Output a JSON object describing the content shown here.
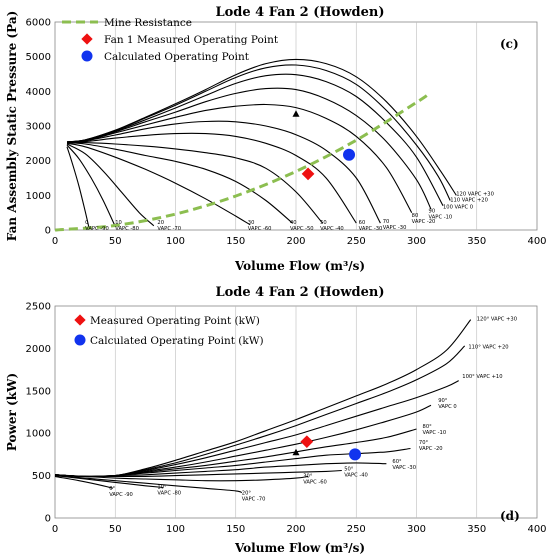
{
  "chart_data": [
    {
      "type": "line",
      "title": "Lode 4 Fan 2 (Howden)",
      "xlabel": "Volume Flow (m³/s)",
      "ylabel": "Fan Assembly Static Pressure (Pa)",
      "panel_label": "(c)",
      "xlim": [
        0,
        400
      ],
      "ylim": [
        0,
        6000
      ],
      "xticks": [
        0,
        50,
        100,
        150,
        200,
        250,
        300,
        350,
        400
      ],
      "yticks": [
        0,
        1000,
        2000,
        3000,
        4000,
        5000,
        6000
      ],
      "grid": "vertical",
      "legend_placement": "top-left",
      "legend": {
        "mine_resistance": "Mine Resistance",
        "measured": "Fan 1 Measured Operating Point",
        "calculated": "Calculated Operating Point"
      },
      "mine_resistance": {
        "x": [
          0,
          50,
          100,
          150,
          200,
          250,
          300,
          310
        ],
        "y": [
          0,
          130,
          460,
          980,
          1690,
          2590,
          3680,
          3920
        ],
        "color": "#8cbe50"
      },
      "measured_point": {
        "x": 210,
        "y": 1620,
        "color": "#ee1111"
      },
      "calculated_point": {
        "x": 244,
        "y": 2170,
        "color": "#1133ee"
      },
      "triangle_marker": {
        "x": 200,
        "y": 3340
      },
      "series": [
        {
          "label": [
            "120 VAPC +30"
          ],
          "label_pos": [
            333,
            1000
          ],
          "x": [
            10,
            25,
            50,
            75,
            100,
            125,
            150,
            175,
            200,
            225,
            250,
            275,
            300,
            320,
            333
          ],
          "y": [
            2540,
            2600,
            2880,
            3250,
            3640,
            4050,
            4480,
            4800,
            4920,
            4800,
            4420,
            3700,
            2700,
            1700,
            1000
          ]
        },
        {
          "label": [
            "110 VAPC +20"
          ],
          "label_pos": [
            328,
            820
          ],
          "x": [
            10,
            25,
            50,
            75,
            100,
            125,
            150,
            175,
            200,
            225,
            250,
            275,
            300,
            318,
            328
          ],
          "y": [
            2540,
            2600,
            2870,
            3230,
            3600,
            4000,
            4400,
            4680,
            4760,
            4600,
            4200,
            3450,
            2450,
            1550,
            850
          ]
        },
        {
          "label": [
            "100 VAPC 0"
          ],
          "label_pos": [
            322,
            620
          ],
          "x": [
            10,
            25,
            50,
            75,
            100,
            125,
            150,
            175,
            200,
            225,
            250,
            275,
            300,
            322
          ],
          "y": [
            2540,
            2590,
            2850,
            3180,
            3520,
            3880,
            4230,
            4450,
            4480,
            4280,
            3850,
            3100,
            2100,
            700
          ]
        },
        {
          "label": [
            "90",
            "VAPC -10"
          ],
          "label_pos": [
            310,
            500
          ],
          "x": [
            10,
            25,
            50,
            75,
            100,
            125,
            150,
            175,
            200,
            225,
            250,
            275,
            300,
            312
          ],
          "y": [
            2540,
            2590,
            2830,
            3120,
            3400,
            3700,
            3940,
            4080,
            4050,
            3780,
            3300,
            2550,
            1450,
            600
          ]
        },
        {
          "label": [
            "80",
            "VAPC -20"
          ],
          "label_pos": [
            296,
            380
          ],
          "x": [
            10,
            25,
            50,
            75,
            100,
            125,
            150,
            175,
            200,
            225,
            250,
            275,
            296
          ],
          "y": [
            2540,
            2580,
            2800,
            3030,
            3250,
            3450,
            3570,
            3620,
            3530,
            3220,
            2700,
            1800,
            500
          ]
        },
        {
          "label": [
            "70",
            "VAPC -30"
          ],
          "label_pos": [
            272,
            200
          ],
          "x": [
            10,
            25,
            50,
            75,
            100,
            125,
            150,
            175,
            200,
            225,
            250,
            270
          ],
          "y": [
            2530,
            2570,
            2740,
            2920,
            3060,
            3130,
            3120,
            3000,
            2750,
            2300,
            1500,
            200
          ]
        },
        {
          "label": [
            "60",
            "VAPC -30"
          ],
          "label_pos": [
            252,
            180
          ],
          "x": [
            10,
            25,
            50,
            75,
            100,
            125,
            150,
            175,
            200,
            225,
            250
          ],
          "y": [
            2530,
            2550,
            2650,
            2730,
            2780,
            2780,
            2700,
            2500,
            2150,
            1500,
            200
          ]
        },
        {
          "label": [
            "50",
            "VAPC -40"
          ],
          "label_pos": [
            220,
            180
          ],
          "x": [
            10,
            25,
            50,
            75,
            100,
            125,
            150,
            175,
            200,
            222
          ],
          "y": [
            2520,
            2520,
            2480,
            2420,
            2340,
            2230,
            2080,
            1780,
            1100,
            200
          ]
        },
        {
          "label": [
            "40",
            "VAPC -50"
          ],
          "label_pos": [
            195,
            180
          ],
          "x": [
            10,
            25,
            50,
            75,
            100,
            125,
            150,
            175,
            197
          ],
          "y": [
            2520,
            2480,
            2330,
            2150,
            1980,
            1750,
            1400,
            850,
            200
          ]
        },
        {
          "label": [
            "30",
            "VAPC -60"
          ],
          "label_pos": [
            160,
            180
          ],
          "x": [
            10,
            25,
            50,
            75,
            100,
            125,
            150,
            162
          ],
          "y": [
            2500,
            2400,
            2100,
            1750,
            1350,
            900,
            400,
            150
          ]
        },
        {
          "label": [
            "20",
            "VAPC -70"
          ],
          "label_pos": [
            85,
            180
          ],
          "x": [
            10,
            25,
            40,
            55,
            70,
            82
          ],
          "y": [
            2480,
            2200,
            1700,
            1100,
            500,
            120
          ]
        },
        {
          "label": [
            "10",
            "VAPC -80"
          ],
          "label_pos": [
            50,
            180
          ],
          "x": [
            10,
            20,
            30,
            40,
            50
          ],
          "y": [
            2450,
            2050,
            1500,
            850,
            100
          ]
        },
        {
          "label": [
            "0",
            "VAPC -90"
          ],
          "label_pos": [
            25,
            180
          ],
          "x": [
            10,
            15,
            20,
            25,
            28
          ],
          "y": [
            2400,
            1850,
            1250,
            550,
            100
          ]
        }
      ]
    },
    {
      "type": "line",
      "title": "Lode 4 Fan 2 (Howden)",
      "xlabel": "Volume Flow (m³/s)",
      "ylabel": "Power (kW)",
      "panel_label": "(d)",
      "xlim": [
        0,
        400
      ],
      "ylim": [
        0,
        2500
      ],
      "xticks": [
        0,
        50,
        100,
        150,
        200,
        250,
        300,
        350,
        400
      ],
      "yticks": [
        0,
        500,
        1000,
        1500,
        2000,
        2500
      ],
      "grid": "vertical",
      "legend_placement": "top-left",
      "legend": {
        "measured": "Measured Operating Point (kW)",
        "calculated": "Calculated Operating Point (kW)"
      },
      "measured_point": {
        "x": 209,
        "y": 900,
        "color": "#ee1111"
      },
      "calculated_point": {
        "x": 249,
        "y": 750,
        "color": "#1133ee"
      },
      "triangle_marker": {
        "x": 200,
        "y": 770
      },
      "series": [
        {
          "label": [
            "120° VAPC +30"
          ],
          "label_pos": [
            350,
            2330
          ],
          "x": [
            0,
            25,
            50,
            75,
            100,
            125,
            150,
            175,
            200,
            225,
            250,
            275,
            300,
            325,
            345
          ],
          "y": [
            510,
            490,
            500,
            580,
            680,
            790,
            900,
            1030,
            1160,
            1300,
            1440,
            1580,
            1750,
            1980,
            2340
          ]
        },
        {
          "label": [
            "110° VAPC +20"
          ],
          "label_pos": [
            343,
            2000
          ],
          "x": [
            0,
            25,
            50,
            75,
            100,
            125,
            150,
            175,
            200,
            225,
            250,
            275,
            300,
            325,
            340
          ],
          "y": [
            510,
            490,
            500,
            570,
            650,
            750,
            860,
            970,
            1090,
            1220,
            1350,
            1480,
            1630,
            1820,
            2030
          ]
        },
        {
          "label": [
            "100° VAPC +10"
          ],
          "label_pos": [
            338,
            1650
          ],
          "x": [
            0,
            25,
            50,
            75,
            100,
            125,
            150,
            175,
            200,
            225,
            250,
            275,
            300,
            325,
            335
          ],
          "y": [
            510,
            490,
            500,
            560,
            630,
            710,
            800,
            890,
            980,
            1090,
            1200,
            1310,
            1420,
            1550,
            1620
          ]
        },
        {
          "label": [
            "90°",
            "VAPC 0"
          ],
          "label_pos": [
            318,
            1370
          ],
          "x": [
            0,
            25,
            50,
            75,
            100,
            125,
            150,
            175,
            200,
            225,
            250,
            275,
            300,
            312
          ],
          "y": [
            510,
            490,
            500,
            550,
            600,
            660,
            730,
            800,
            870,
            950,
            1040,
            1140,
            1250,
            1330
          ]
        },
        {
          "label": [
            "80°",
            "VAPC -10"
          ],
          "label_pos": [
            305,
            1060
          ],
          "x": [
            0,
            25,
            50,
            75,
            100,
            125,
            150,
            175,
            200,
            225,
            250,
            275,
            300
          ],
          "y": [
            510,
            490,
            500,
            540,
            580,
            620,
            670,
            720,
            780,
            840,
            890,
            950,
            1050
          ]
        },
        {
          "label": [
            "70°",
            "VAPC -20"
          ],
          "label_pos": [
            302,
            870
          ],
          "x": [
            0,
            25,
            50,
            75,
            100,
            125,
            150,
            175,
            200,
            225,
            250,
            275,
            295
          ],
          "y": [
            510,
            490,
            500,
            530,
            560,
            590,
            620,
            660,
            700,
            740,
            760,
            780,
            820
          ]
        },
        {
          "label": [
            "60°",
            "VAPC -30"
          ],
          "label_pos": [
            280,
            650
          ],
          "x": [
            0,
            25,
            50,
            75,
            100,
            125,
            150,
            175,
            200,
            225,
            250,
            275
          ],
          "y": [
            510,
            490,
            500,
            510,
            530,
            550,
            570,
            600,
            620,
            640,
            650,
            640
          ]
        },
        {
          "label": [
            "50°",
            "VAPC -40"
          ],
          "label_pos": [
            240,
            560
          ],
          "x": [
            0,
            25,
            50,
            75,
            100,
            125,
            150,
            175,
            200,
            225,
            238
          ],
          "y": [
            510,
            490,
            490,
            490,
            500,
            510,
            520,
            530,
            540,
            550,
            560
          ]
        },
        {
          "label": [
            "30°",
            "VAPC -60"
          ],
          "label_pos": [
            206,
            480
          ],
          "x": [
            0,
            25,
            50,
            75,
            100,
            125,
            150,
            175,
            200,
            210
          ],
          "y": [
            510,
            490,
            470,
            460,
            450,
            440,
            440,
            450,
            470,
            490
          ]
        },
        {
          "label": [
            "20°",
            "VAPC -70"
          ],
          "label_pos": [
            155,
            280
          ],
          "x": [
            0,
            25,
            50,
            75,
            100,
            125,
            150,
            155
          ],
          "y": [
            500,
            470,
            440,
            410,
            380,
            350,
            320,
            300
          ]
        },
        {
          "label": [
            "10°",
            "VAPC -80"
          ],
          "label_pos": [
            85,
            350
          ],
          "x": [
            0,
            25,
            50,
            75,
            90
          ],
          "y": [
            500,
            460,
            420,
            380,
            360
          ]
        },
        {
          "label": [
            "0°",
            "VAPC -90"
          ],
          "label_pos": [
            45,
            330
          ],
          "x": [
            0,
            20,
            40,
            48
          ],
          "y": [
            490,
            440,
            380,
            350
          ]
        }
      ]
    }
  ]
}
